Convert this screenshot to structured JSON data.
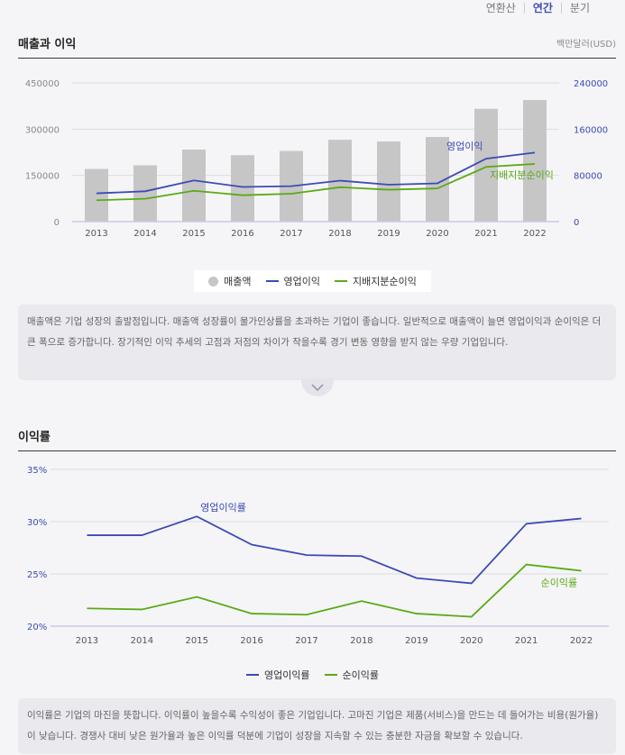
{
  "period_tabs": [
    {
      "label": "연환산",
      "active": false
    },
    {
      "label": "연간",
      "active": true
    },
    {
      "label": "분기",
      "active": false
    }
  ],
  "revenue_section": {
    "title": "매출과 이익",
    "unit": "백만달러(USD)",
    "description": "매출액은 기업 성장의 출발점입니다. 매출액 성장률이 물가인상률을 초과하는 기업이 좋습니다. 일반적으로 매출액이 늘면 영업이익과 순이익은 더 큰 폭으로 증가합니다. 장기적인 이익 추세의 고점과 저점의 차이가 작을수록 경기 변동 영향을 받지 않는 우량 기업입니다."
  },
  "margin_section": {
    "title": "이익률",
    "description": "이익률은 기업의 마진을 뜻합니다. 이익률이 높을수록 수익성이 좋은 기업입니다. 고마진 기업은 제품(서비스)을 만드는 데 들어가는 비용(원가율)이 낮습니다. 경쟁사 대비 낮은 원가율과 높은 이익률 덕분에 기업이 성장을 지속할 수 있는 충분한 자금을 확보할 수 있습니다."
  },
  "colors": {
    "bar": "#c6c6c6",
    "operating": "#3c4ab4",
    "net": "#5aaa16",
    "axis_text": "#888888",
    "right_axis_text": "#3c4ab4",
    "grid": "#dcdcdc",
    "baseline": "#c9c9e8"
  },
  "chart_data": [
    {
      "type": "bar",
      "title": "매출과 이익",
      "categories": [
        "2013",
        "2014",
        "2015",
        "2016",
        "2017",
        "2018",
        "2019",
        "2020",
        "2021",
        "2022"
      ],
      "left_axis": {
        "range": [
          0,
          450000
        ],
        "ticks": [
          "0",
          "150000",
          "300000",
          "450000"
        ]
      },
      "right_axis": {
        "range": [
          0,
          240000
        ],
        "ticks": [
          "0",
          "80000",
          "160000",
          "240000"
        ]
      },
      "series": [
        {
          "name": "매출액",
          "type": "bar",
          "axis": "left",
          "values": [
            170910,
            182795,
            233715,
            215639,
            229234,
            265595,
            260174,
            274515,
            365817,
            394328
          ]
        },
        {
          "name": "영업이익",
          "type": "line",
          "axis": "right",
          "values": [
            48999,
            52503,
            71230,
            60024,
            61344,
            70898,
            63930,
            66288,
            108949,
            119437
          ]
        },
        {
          "name": "지배지분순이익",
          "type": "line",
          "axis": "right",
          "values": [
            37037,
            39510,
            53394,
            45687,
            48351,
            59531,
            55256,
            57411,
            94680,
            99803
          ]
        }
      ],
      "annotations": [
        {
          "text": "영업이익",
          "series": "영업이익",
          "index": 8
        },
        {
          "text": "지배지분순이익",
          "series": "지배지분순이익",
          "index": 8
        }
      ],
      "legend": [
        "매출액",
        "영업이익",
        "지배지분순이익"
      ]
    },
    {
      "type": "line",
      "title": "이익률",
      "categories": [
        "2013",
        "2014",
        "2015",
        "2016",
        "2017",
        "2018",
        "2019",
        "2020",
        "2021",
        "2022"
      ],
      "y_axis": {
        "range": [
          20,
          35
        ],
        "ticks": [
          "20%",
          "25%",
          "30%",
          "35%"
        ]
      },
      "series": [
        {
          "name": "영업이익률",
          "values": [
            28.7,
            28.7,
            30.5,
            27.8,
            26.8,
            26.7,
            24.6,
            24.1,
            29.8,
            30.3
          ]
        },
        {
          "name": "순이익률",
          "values": [
            21.7,
            21.6,
            22.8,
            21.2,
            21.1,
            22.4,
            21.2,
            20.9,
            25.9,
            25.3
          ]
        }
      ],
      "annotations": [
        {
          "text": "영업이익률",
          "series": "영업이익률",
          "index": 2
        },
        {
          "text": "순이익률",
          "series": "순이익률",
          "index": 8
        }
      ],
      "legend": [
        "영업이익률",
        "순이익률"
      ]
    }
  ]
}
